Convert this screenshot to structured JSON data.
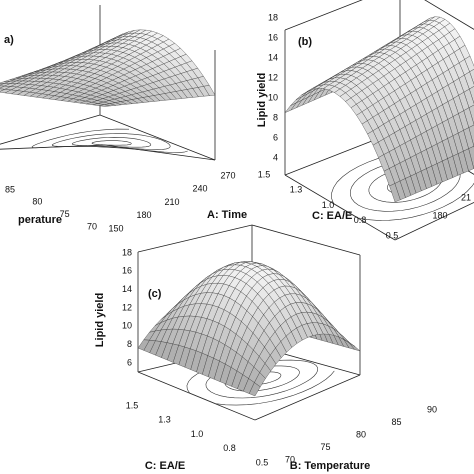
{
  "panels": [
    {
      "label": "a)",
      "x_axis": {
        "title": "perature",
        "ticks": [
          "85",
          "80",
          "75",
          "70"
        ]
      },
      "y_axis": {
        "title": "A: Time",
        "ticks": [
          "150",
          "180",
          "210",
          "240",
          "270"
        ]
      }
    },
    {
      "label": "(b)",
      "z_axis": {
        "title": "Lipid yield",
        "ticks": [
          "4",
          "6",
          "8",
          "10",
          "12",
          "14",
          "16",
          "18"
        ]
      },
      "x_axis": {
        "title": "C: EA/E",
        "ticks": [
          "1.5",
          "1.3",
          "1.0",
          "0.8",
          "0.5"
        ]
      },
      "y_axis": {
        "ticks": [
          "180",
          "21"
        ]
      }
    },
    {
      "label": "(c)",
      "z_axis": {
        "title": "Lipid yield",
        "ticks": [
          "6",
          "8",
          "10",
          "12",
          "14",
          "16",
          "18"
        ]
      },
      "x_axis": {
        "title": "C: EA/E",
        "ticks": [
          "1.5",
          "1.3",
          "1.0",
          "0.8",
          "0.5"
        ]
      },
      "y_axis": {
        "title": "B: Temperature",
        "ticks": [
          "70",
          "75",
          "80",
          "85",
          "90"
        ]
      }
    }
  ]
}
